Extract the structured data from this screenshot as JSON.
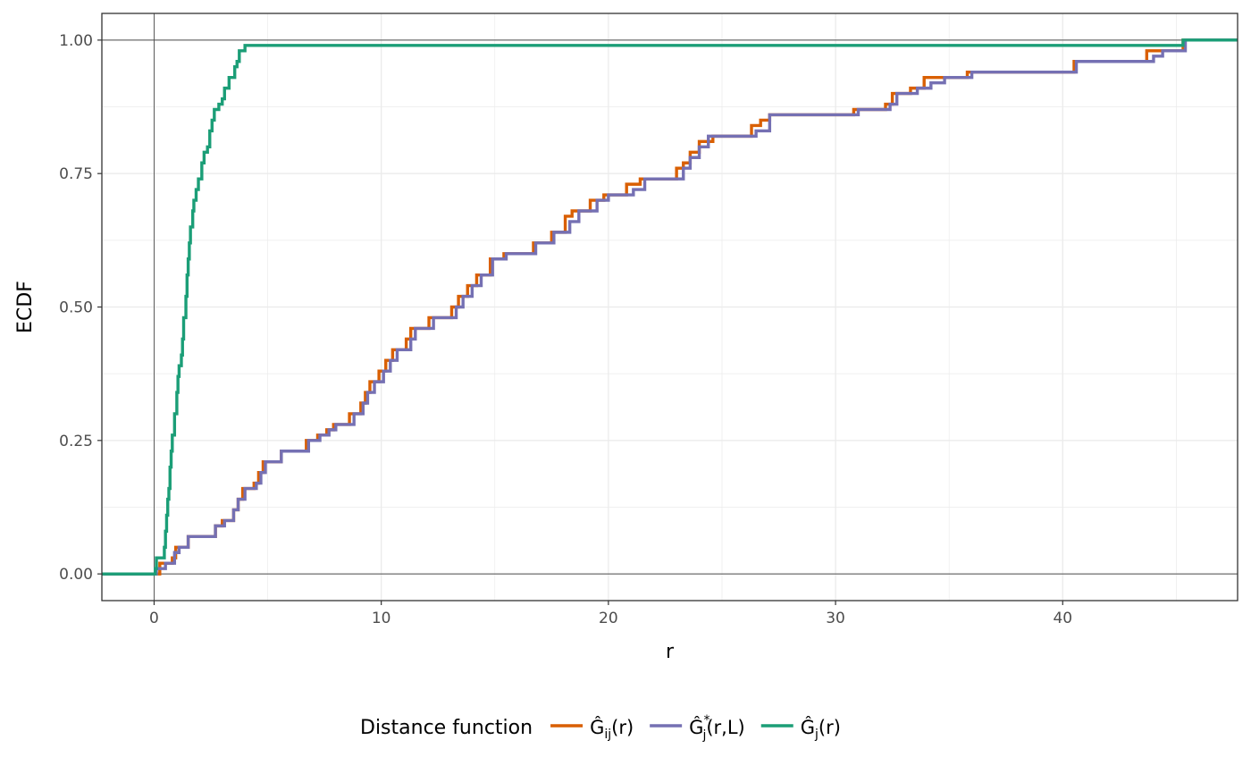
{
  "chart_data": {
    "type": "line",
    "step": true,
    "xlabel": "r",
    "ylabel": "ECDF",
    "xlim": [
      -2.3,
      47.7
    ],
    "ylim": [
      -0.05,
      1.05
    ],
    "x_ticks": [
      0,
      10,
      20,
      30,
      40
    ],
    "x_tick_labels": [
      "0",
      "10",
      "20",
      "30",
      "40"
    ],
    "y_ticks": [
      0,
      0.25,
      0.5,
      0.75,
      1.0
    ],
    "y_tick_labels": [
      "0.00",
      "0.25",
      "0.50",
      "0.75",
      "1.00"
    ],
    "reference_lines": {
      "x": 0,
      "y": [
        0,
        1
      ]
    },
    "grid": true,
    "legend": {
      "position": "bottom",
      "title": "Distance function",
      "entries": [
        {
          "base": "Ĝ",
          "sub": "ij",
          "sup": "",
          "tail": "(r)"
        },
        {
          "base": "Ĝ",
          "sub": "j",
          "sup": "*",
          "tail": "(r,L)"
        },
        {
          "base": "Ĝ",
          "sub": "j",
          "sup": "",
          "tail": "(r)"
        }
      ]
    },
    "series": [
      {
        "legend_index": 0,
        "color": "#D95F02",
        "points": [
          [
            -2.3,
            0
          ],
          [
            0,
            0
          ],
          [
            0.25,
            0.02
          ],
          [
            0.8,
            0.03
          ],
          [
            0.95,
            0.05
          ],
          [
            1.5,
            0.07
          ],
          [
            2.5,
            0.07
          ],
          [
            2.7,
            0.09
          ],
          [
            3.0,
            0.1
          ],
          [
            3.5,
            0.12
          ],
          [
            3.7,
            0.14
          ],
          [
            3.9,
            0.16
          ],
          [
            4.4,
            0.17
          ],
          [
            4.6,
            0.19
          ],
          [
            4.8,
            0.21
          ],
          [
            5.4,
            0.21
          ],
          [
            5.6,
            0.23
          ],
          [
            6.5,
            0.23
          ],
          [
            6.7,
            0.25
          ],
          [
            7.2,
            0.26
          ],
          [
            7.6,
            0.27
          ],
          [
            7.9,
            0.28
          ],
          [
            8.6,
            0.3
          ],
          [
            9.1,
            0.32
          ],
          [
            9.3,
            0.34
          ],
          [
            9.5,
            0.36
          ],
          [
            9.9,
            0.38
          ],
          [
            10.2,
            0.4
          ],
          [
            10.5,
            0.42
          ],
          [
            11.1,
            0.44
          ],
          [
            11.3,
            0.46
          ],
          [
            12.1,
            0.48
          ],
          [
            13.1,
            0.5
          ],
          [
            13.4,
            0.52
          ],
          [
            13.8,
            0.54
          ],
          [
            14.2,
            0.56
          ],
          [
            14.8,
            0.59
          ],
          [
            15.4,
            0.6
          ],
          [
            16.7,
            0.62
          ],
          [
            17.5,
            0.64
          ],
          [
            18.1,
            0.67
          ],
          [
            18.4,
            0.68
          ],
          [
            19.2,
            0.7
          ],
          [
            19.8,
            0.71
          ],
          [
            20.8,
            0.73
          ],
          [
            21.4,
            0.74
          ],
          [
            23.0,
            0.76
          ],
          [
            23.3,
            0.77
          ],
          [
            23.6,
            0.79
          ],
          [
            24.0,
            0.81
          ],
          [
            24.6,
            0.82
          ],
          [
            26.3,
            0.84
          ],
          [
            26.7,
            0.85
          ],
          [
            27.1,
            0.86
          ],
          [
            30.8,
            0.87
          ],
          [
            32.2,
            0.88
          ],
          [
            32.5,
            0.9
          ],
          [
            33.3,
            0.91
          ],
          [
            33.9,
            0.93
          ],
          [
            34.5,
            0.93
          ],
          [
            35.8,
            0.94
          ],
          [
            40.5,
            0.96
          ],
          [
            43.7,
            0.98
          ],
          [
            45.3,
            1.0
          ],
          [
            47.7,
            1.0
          ]
        ]
      },
      {
        "legend_index": 1,
        "color": "#7570B3",
        "points": [
          [
            -2.3,
            0
          ],
          [
            0,
            0
          ],
          [
            0.1,
            0.01
          ],
          [
            0.5,
            0.02
          ],
          [
            0.9,
            0.04
          ],
          [
            1.1,
            0.05
          ],
          [
            1.5,
            0.07
          ],
          [
            2.5,
            0.07
          ],
          [
            2.7,
            0.09
          ],
          [
            3.1,
            0.1
          ],
          [
            3.5,
            0.12
          ],
          [
            3.7,
            0.14
          ],
          [
            4.0,
            0.16
          ],
          [
            4.5,
            0.17
          ],
          [
            4.7,
            0.19
          ],
          [
            4.9,
            0.21
          ],
          [
            5.6,
            0.23
          ],
          [
            6.6,
            0.23
          ],
          [
            6.8,
            0.25
          ],
          [
            7.3,
            0.26
          ],
          [
            7.7,
            0.27
          ],
          [
            8.0,
            0.28
          ],
          [
            8.8,
            0.3
          ],
          [
            9.2,
            0.32
          ],
          [
            9.4,
            0.34
          ],
          [
            9.7,
            0.36
          ],
          [
            10.1,
            0.38
          ],
          [
            10.4,
            0.4
          ],
          [
            10.7,
            0.42
          ],
          [
            11.3,
            0.44
          ],
          [
            11.5,
            0.46
          ],
          [
            12.3,
            0.48
          ],
          [
            13.3,
            0.5
          ],
          [
            13.6,
            0.52
          ],
          [
            14.0,
            0.54
          ],
          [
            14.4,
            0.56
          ],
          [
            14.9,
            0.59
          ],
          [
            15.5,
            0.6
          ],
          [
            16.8,
            0.62
          ],
          [
            17.6,
            0.64
          ],
          [
            18.3,
            0.66
          ],
          [
            18.7,
            0.68
          ],
          [
            19.5,
            0.7
          ],
          [
            20.0,
            0.71
          ],
          [
            21.1,
            0.72
          ],
          [
            21.6,
            0.74
          ],
          [
            23.3,
            0.76
          ],
          [
            23.6,
            0.78
          ],
          [
            24.0,
            0.8
          ],
          [
            24.4,
            0.82
          ],
          [
            26.5,
            0.83
          ],
          [
            27.1,
            0.86
          ],
          [
            31.0,
            0.87
          ],
          [
            32.4,
            0.88
          ],
          [
            32.7,
            0.9
          ],
          [
            33.6,
            0.91
          ],
          [
            34.2,
            0.92
          ],
          [
            34.8,
            0.93
          ],
          [
            36.0,
            0.94
          ],
          [
            40.6,
            0.96
          ],
          [
            44.0,
            0.97
          ],
          [
            44.4,
            0.98
          ],
          [
            45.4,
            1.0
          ],
          [
            47.7,
            1.0
          ]
        ]
      },
      {
        "legend_index": 2,
        "color": "#1B9E77",
        "points": [
          [
            -2.3,
            0
          ],
          [
            0,
            0
          ],
          [
            0.05,
            0.01
          ],
          [
            0.1,
            0.03
          ],
          [
            0.45,
            0.05
          ],
          [
            0.5,
            0.08
          ],
          [
            0.55,
            0.11
          ],
          [
            0.6,
            0.14
          ],
          [
            0.65,
            0.16
          ],
          [
            0.7,
            0.2
          ],
          [
            0.75,
            0.23
          ],
          [
            0.8,
            0.26
          ],
          [
            0.9,
            0.3
          ],
          [
            1.0,
            0.34
          ],
          [
            1.05,
            0.37
          ],
          [
            1.1,
            0.39
          ],
          [
            1.2,
            0.41
          ],
          [
            1.25,
            0.44
          ],
          [
            1.3,
            0.48
          ],
          [
            1.4,
            0.52
          ],
          [
            1.45,
            0.56
          ],
          [
            1.5,
            0.59
          ],
          [
            1.55,
            0.62
          ],
          [
            1.6,
            0.65
          ],
          [
            1.7,
            0.68
          ],
          [
            1.75,
            0.7
          ],
          [
            1.85,
            0.72
          ],
          [
            1.95,
            0.74
          ],
          [
            2.1,
            0.77
          ],
          [
            2.2,
            0.79
          ],
          [
            2.35,
            0.8
          ],
          [
            2.45,
            0.83
          ],
          [
            2.55,
            0.85
          ],
          [
            2.65,
            0.87
          ],
          [
            2.85,
            0.88
          ],
          [
            3.0,
            0.89
          ],
          [
            3.1,
            0.91
          ],
          [
            3.3,
            0.93
          ],
          [
            3.55,
            0.95
          ],
          [
            3.65,
            0.96
          ],
          [
            3.75,
            0.98
          ],
          [
            4.0,
            0.99
          ],
          [
            45.3,
            1.0
          ],
          [
            47.7,
            1.0
          ]
        ]
      }
    ]
  }
}
